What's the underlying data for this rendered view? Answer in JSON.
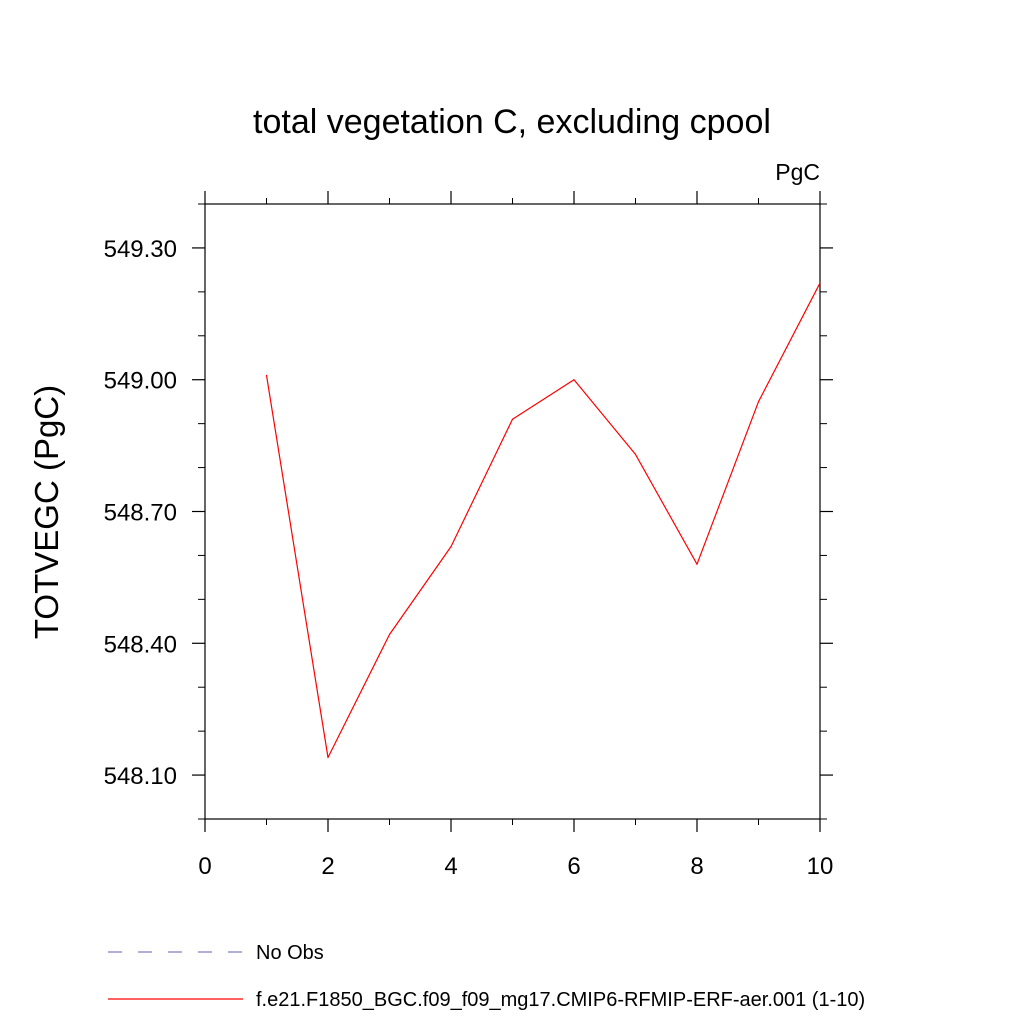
{
  "chart_data": {
    "type": "line",
    "title": "total vegetation C, excluding cpool",
    "units_label": "PgC",
    "ylabel": "TOTVEGC  (PgC)",
    "xlabel": "",
    "xlim": [
      0,
      10
    ],
    "ylim": [
      548.0,
      549.4
    ],
    "x_ticks": [
      0,
      2,
      4,
      6,
      8,
      10
    ],
    "x_tick_labels": [
      "0",
      "2",
      "4",
      "6",
      "8",
      "10"
    ],
    "y_ticks": [
      548.1,
      548.4,
      548.7,
      549.0,
      549.3
    ],
    "y_tick_labels": [
      "548.10",
      "548.40",
      "548.70",
      "549.00",
      "549.30"
    ],
    "y_minor_step": 0.1,
    "grid": false,
    "series": [
      {
        "name": "f.e21.F1850_BGC.f09_f09_mg17.CMIP6-RFMIP-ERF-aer.001 (1-10)",
        "color": "#ff0000",
        "dash": "solid",
        "x": [
          1,
          2,
          3,
          4,
          5,
          6,
          7,
          8,
          9,
          10
        ],
        "y": [
          549.01,
          548.14,
          548.42,
          548.62,
          548.91,
          549.0,
          548.83,
          548.58,
          548.95,
          549.22
        ]
      }
    ],
    "legend": [
      {
        "label": "No Obs",
        "color": "#7f7fc0",
        "dash": "dashed"
      },
      {
        "label": "f.e21.F1850_BGC.f09_f09_mg17.CMIP6-RFMIP-ERF-aer.001 (1-10)",
        "color": "#ff0000",
        "dash": "solid"
      }
    ],
    "legend_placement": "bottom"
  }
}
